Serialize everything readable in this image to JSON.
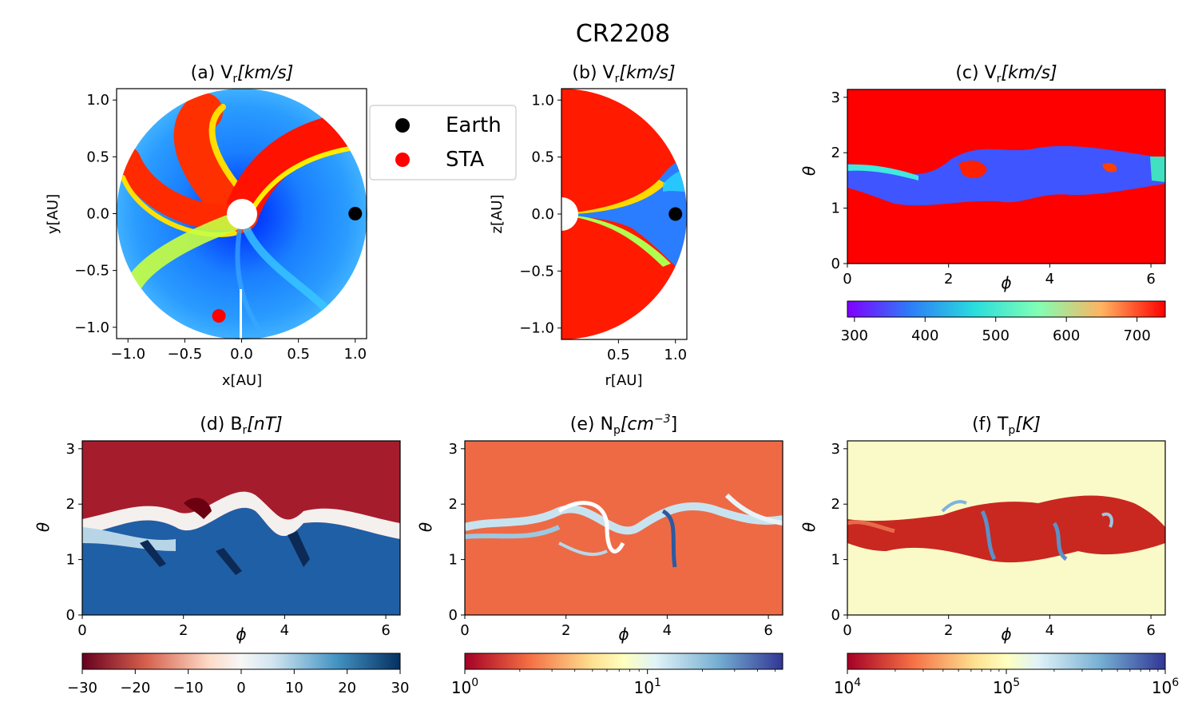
{
  "figure": {
    "title": "CR2208"
  },
  "chart_data": [
    {
      "id": "a",
      "type": "heatmap",
      "title": "(a) V",
      "title_sub": "r",
      "title_rest": "[km/s]",
      "xlabel": "x[AU]",
      "ylabel": "y[AU]",
      "xlim": [
        -1.1,
        1.1
      ],
      "ylim": [
        -1.1,
        1.1
      ],
      "xticks": [
        -1.0,
        -0.5,
        0.0,
        0.5,
        1.0
      ],
      "xtick_labels": [
        "−1.0",
        "−0.5",
        "0.0",
        "0.5",
        "1.0"
      ],
      "yticks": [
        -1.0,
        -0.5,
        0.0,
        0.5,
        1.0
      ],
      "ytick_labels": [
        "−1.0",
        "−0.5",
        "0.0",
        "0.5",
        "1.0"
      ],
      "markers": [
        {
          "name": "Earth",
          "x": 1.0,
          "y": 0.0,
          "color": "#000000"
        },
        {
          "name": "STA",
          "x": -0.2,
          "y": -0.9,
          "color": "#ff0000"
        }
      ]
    },
    {
      "id": "b",
      "type": "heatmap",
      "title": "(b) V",
      "title_sub": "r",
      "title_rest": "[km/s]",
      "xlabel": "r[AU]",
      "ylabel": "z[AU]",
      "xlim": [
        0.0,
        1.1
      ],
      "ylim": [
        -1.1,
        1.1
      ],
      "xticks": [
        0.5,
        1.0
      ],
      "xtick_labels": [
        "0.5",
        "1.0"
      ],
      "yticks": [
        -1.0,
        -0.5,
        0.0,
        0.5,
        1.0
      ],
      "ytick_labels": [
        "−1.0",
        "−0.5",
        "0.0",
        "0.5",
        "1.0"
      ],
      "markers": [
        {
          "name": "Earth",
          "x": 1.0,
          "y": 0.0,
          "color": "#000000"
        }
      ]
    },
    {
      "id": "c",
      "type": "heatmap",
      "title": "(c) V",
      "title_sub": "r",
      "title_rest": "[km/s]",
      "xlabel": "ϕ",
      "ylabel": "θ",
      "xlim": [
        0,
        6.283
      ],
      "ylim": [
        0,
        3.1416
      ],
      "xticks": [
        0,
        2,
        4,
        6
      ],
      "xtick_labels": [
        "0",
        "2",
        "4",
        "6"
      ],
      "yticks": [
        0,
        1,
        2,
        3
      ],
      "ytick_labels": [
        "0",
        "1",
        "2",
        "3"
      ],
      "colorbar": {
        "colormap": "rainbow",
        "range": [
          290,
          740
        ],
        "ticks": [
          300,
          400,
          500,
          600,
          700
        ],
        "tick_labels": [
          "300",
          "400",
          "500",
          "600",
          "700"
        ]
      }
    },
    {
      "id": "d",
      "type": "heatmap",
      "title": "(d) B",
      "title_sub": "r",
      "title_rest": "[nT]",
      "xlabel": "ϕ",
      "ylabel": "θ",
      "xlim": [
        0,
        6.283
      ],
      "ylim": [
        0,
        3.1416
      ],
      "xticks": [
        0,
        2,
        4,
        6
      ],
      "xtick_labels": [
        "0",
        "2",
        "4",
        "6"
      ],
      "yticks": [
        0,
        1,
        2,
        3
      ],
      "ytick_labels": [
        "0",
        "1",
        "2",
        "3"
      ],
      "colorbar": {
        "colormap": "RdBu",
        "range": [
          -30,
          30
        ],
        "ticks": [
          -30,
          -20,
          -10,
          0,
          10,
          20,
          30
        ],
        "tick_labels": [
          "−30",
          "−20",
          "−10",
          "0",
          "10",
          "20",
          "30"
        ]
      }
    },
    {
      "id": "e",
      "type": "heatmap",
      "title": "(e) N",
      "title_sub": "p",
      "title_rest": "[cm",
      "title_sup": "−3",
      "title_end": "]",
      "xlabel": "ϕ",
      "ylabel": "θ",
      "xlim": [
        0,
        6.283
      ],
      "ylim": [
        0,
        3.1416
      ],
      "xticks": [
        0,
        2,
        4,
        6
      ],
      "xtick_labels": [
        "0",
        "2",
        "4",
        "6"
      ],
      "yticks": [
        0,
        1,
        2,
        3
      ],
      "ytick_labels": [
        "0",
        "1",
        "2",
        "3"
      ],
      "colorbar": {
        "colormap": "RdYlBu",
        "scale": "log",
        "range": [
          1,
          55
        ],
        "major_ticks": [
          1,
          10
        ],
        "major_labels": [
          {
            "base": "10",
            "exp": "0"
          },
          {
            "base": "10",
            "exp": "1"
          }
        ]
      }
    },
    {
      "id": "f",
      "type": "heatmap",
      "title": "(f) T",
      "title_sub": "p",
      "title_rest": "[K]",
      "xlabel": "ϕ",
      "ylabel": "θ",
      "xlim": [
        0,
        6.283
      ],
      "ylim": [
        0,
        3.1416
      ],
      "xticks": [
        0,
        2,
        4,
        6
      ],
      "xtick_labels": [
        "0",
        "2",
        "4",
        "6"
      ],
      "yticks": [
        0,
        1,
        2,
        3
      ],
      "ytick_labels": [
        "0",
        "1",
        "2",
        "3"
      ],
      "colorbar": {
        "colormap": "RdYlBu",
        "scale": "log",
        "range": [
          10000,
          1000000
        ],
        "major_ticks": [
          10000,
          100000,
          1000000
        ],
        "major_labels": [
          {
            "base": "10",
            "exp": "4"
          },
          {
            "base": "10",
            "exp": "5"
          },
          {
            "base": "10",
            "exp": "6"
          }
        ]
      }
    }
  ],
  "legend": {
    "items": [
      {
        "label": "Earth",
        "color": "#000000"
      },
      {
        "label": "STA",
        "color": "#ff0000"
      }
    ]
  }
}
